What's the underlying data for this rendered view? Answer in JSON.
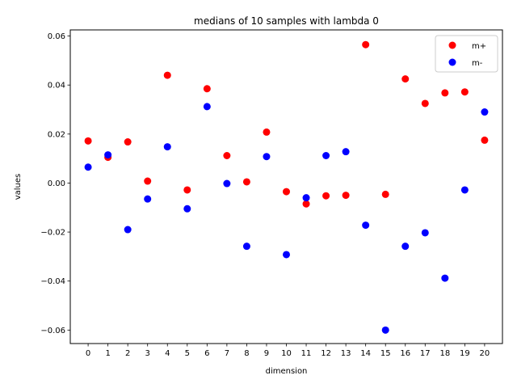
{
  "chart_data": {
    "type": "scatter",
    "title": "medians of 10 samples with lambda 0",
    "xlabel": "dimension",
    "ylabel": "values",
    "x": [
      0,
      1,
      2,
      3,
      4,
      5,
      6,
      7,
      8,
      9,
      10,
      11,
      12,
      13,
      14,
      15,
      16,
      17,
      18,
      19,
      20
    ],
    "xlim": [
      -0.9,
      20.9
    ],
    "ylim": [
      -0.0655,
      0.0625
    ],
    "yticks": [
      -0.06,
      -0.04,
      -0.02,
      0.0,
      0.02,
      0.04,
      0.06
    ],
    "ytick_labels": [
      "−0.06",
      "−0.04",
      "−0.02",
      "0.00",
      "0.02",
      "0.04",
      "0.06"
    ],
    "grid": false,
    "legend": {
      "placement": "top-right"
    },
    "series": [
      {
        "name": "m+",
        "color": "#ff0000",
        "values": [
          0.0172,
          0.0105,
          0.0168,
          0.0008,
          0.044,
          -0.0028,
          0.0385,
          0.0112,
          0.0005,
          0.0208,
          -0.0035,
          -0.0085,
          -0.0052,
          -0.005,
          0.0565,
          -0.0046,
          0.0425,
          0.0325,
          0.0368,
          0.0372,
          0.0175
        ]
      },
      {
        "name": "m-",
        "color": "#0000ff",
        "values": [
          0.0065,
          0.0115,
          -0.019,
          -0.0065,
          0.0148,
          -0.0105,
          0.0312,
          -0.0002,
          -0.0258,
          0.0108,
          -0.0292,
          -0.006,
          0.0112,
          0.0128,
          -0.0172,
          -0.06,
          -0.0258,
          -0.0203,
          -0.0388,
          -0.0028,
          0.029
        ]
      }
    ]
  }
}
